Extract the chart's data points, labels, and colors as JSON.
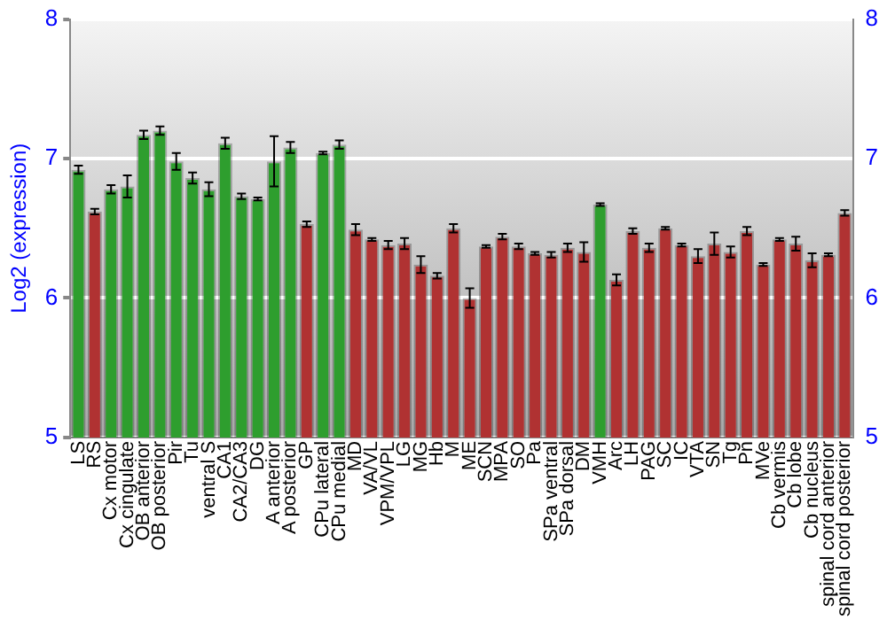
{
  "chart_data": {
    "type": "bar",
    "ylabel": "Log2 (expression)",
    "categories": [
      "LS",
      "RS",
      "Cx motor",
      "Cx cingulate",
      "OB anterior",
      "OB posterior",
      "Pir",
      "Tu",
      "ventral S",
      "CA1",
      "CA2/CA3",
      "DG",
      "A anterior",
      "A posterior",
      "GP",
      "CPu lateral",
      "CPu medial",
      "MD",
      "VA/VL",
      "VPM/VPL",
      "LG",
      "MG",
      "Hb",
      "M",
      "ME",
      "SCN",
      "MPA",
      "SO",
      "Pa",
      "SPa ventral",
      "SPa dorsal",
      "DM",
      "VMH",
      "Arc",
      "LH",
      "PAG",
      "SC",
      "IC",
      "VTA",
      "SN",
      "Tg",
      "Pn",
      "MVe",
      "Cb vermis",
      "Cb lobe",
      "Cb nucleus",
      "spinal cord anterior",
      "spinal cord posterior"
    ],
    "values": [
      6.92,
      6.62,
      6.78,
      6.8,
      7.17,
      7.2,
      6.98,
      6.86,
      6.78,
      7.11,
      6.73,
      6.71,
      6.98,
      7.08,
      6.53,
      7.04,
      7.1,
      6.49,
      6.42,
      6.38,
      6.39,
      6.24,
      6.16,
      6.5,
      6.0,
      6.37,
      6.44,
      6.37,
      6.32,
      6.31,
      6.36,
      6.33,
      6.67,
      6.13,
      6.48,
      6.36,
      6.5,
      6.38,
      6.3,
      6.39,
      6.33,
      6.48,
      6.24,
      6.42,
      6.39,
      6.27,
      6.31,
      6.61
    ],
    "errors": [
      0.03,
      0.02,
      0.03,
      0.08,
      0.03,
      0.03,
      0.06,
      0.04,
      0.05,
      0.04,
      0.02,
      0.01,
      0.18,
      0.04,
      0.02,
      0.01,
      0.03,
      0.04,
      0.01,
      0.03,
      0.04,
      0.06,
      0.02,
      0.03,
      0.07,
      0.01,
      0.02,
      0.02,
      0.01,
      0.02,
      0.03,
      0.07,
      0.01,
      0.04,
      0.02,
      0.03,
      0.01,
      0.01,
      0.05,
      0.08,
      0.04,
      0.03,
      0.01,
      0.01,
      0.05,
      0.05,
      0.01,
      0.02
    ],
    "colors": [
      "#2e9e2e",
      "#b03232",
      "#2e9e2e",
      "#2e9e2e",
      "#2e9e2e",
      "#2e9e2e",
      "#2e9e2e",
      "#2e9e2e",
      "#2e9e2e",
      "#2e9e2e",
      "#2e9e2e",
      "#2e9e2e",
      "#2e9e2e",
      "#2e9e2e",
      "#b03232",
      "#2e9e2e",
      "#2e9e2e",
      "#b03232",
      "#b03232",
      "#b03232",
      "#b03232",
      "#b03232",
      "#b03232",
      "#b03232",
      "#b03232",
      "#b03232",
      "#b03232",
      "#b03232",
      "#b03232",
      "#b03232",
      "#b03232",
      "#b03232",
      "#2e9e2e",
      "#b03232",
      "#b03232",
      "#b03232",
      "#b03232",
      "#b03232",
      "#b03232",
      "#b03232",
      "#b03232",
      "#b03232",
      "#b03232",
      "#b03232",
      "#b03232",
      "#b03232",
      "#b03232",
      "#b03232"
    ],
    "ylim": [
      5,
      8
    ],
    "yticks": [
      5,
      6,
      7,
      8
    ],
    "y2lim": [
      5,
      8
    ],
    "y2ticks": [
      5,
      6,
      7,
      8
    ],
    "grid": "y",
    "legend": false
  }
}
